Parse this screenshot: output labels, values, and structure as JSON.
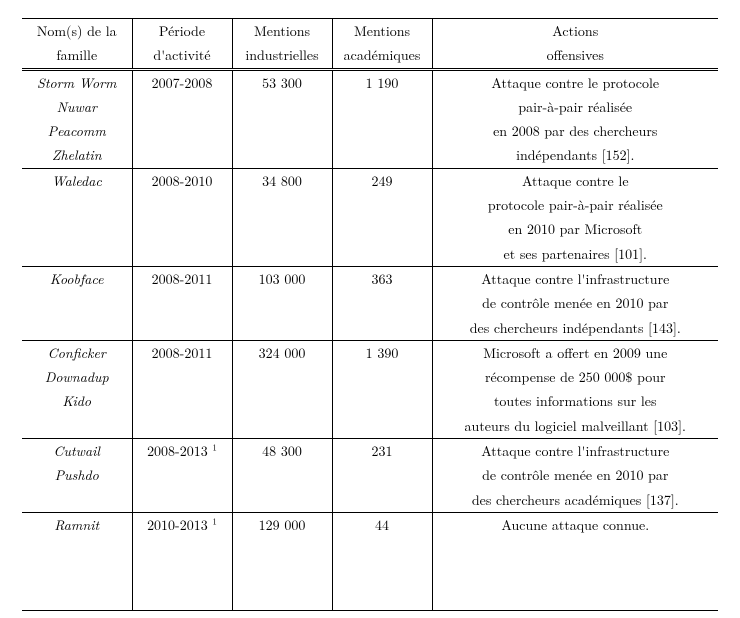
{
  "table": {
    "header": {
      "col1": [
        "Nom(s) de la",
        "famille"
      ],
      "col2": [
        "Période",
        "d'activité"
      ],
      "col3": [
        "Mentions",
        "industrielles"
      ],
      "col4": [
        "Mentions",
        "académiques"
      ],
      "col5": [
        "Actions",
        "offensives"
      ]
    },
    "rows": [
      {
        "family": [
          "Storm Worm",
          "Nuwar",
          "Peacomm",
          "Zhelatin"
        ],
        "period": "2007-2008",
        "industrial": "53 300",
        "academic": "1 190",
        "actions": [
          "Attaque contre le protocole",
          "pair-à-pair réalisée",
          "en 2008 par des chercheurs",
          "indépendants [152]."
        ],
        "period_footnote": ""
      },
      {
        "family": [
          "Waledac"
        ],
        "period": "2008-2010",
        "industrial": "34 800",
        "academic": "249",
        "actions": [
          "Attaque contre le",
          "protocole pair-à-pair réalisée",
          "en 2010 par Microsoft",
          "et ses partenaires [101]."
        ],
        "period_footnote": ""
      },
      {
        "family": [
          "Koobface"
        ],
        "period": "2008-2011",
        "industrial": "103 000",
        "academic": "363",
        "actions": [
          "Attaque contre l'infrastructure",
          "de contrôle menée en 2010 par",
          "des chercheurs indépendants [143]."
        ],
        "period_footnote": ""
      },
      {
        "family": [
          "Conficker",
          "Downadup",
          "Kido"
        ],
        "period": "2008-2011",
        "industrial": "324 000",
        "academic": "1 390",
        "actions": [
          "Microsoft a offert en 2009 une",
          "récompense de 250 000$ pour",
          "toutes informations sur les",
          "auteurs du logiciel malveillant [103]."
        ],
        "period_footnote": ""
      },
      {
        "family": [
          "Cutwail",
          "Pushdo"
        ],
        "period": "2008-2013",
        "industrial": "48 300",
        "academic": "231",
        "actions": [
          "Attaque contre l'infrastructure",
          "de contrôle menée en 2010 par",
          "des chercheurs académiques [137]."
        ],
        "period_footnote": "1"
      },
      {
        "family": [
          "Ramnit"
        ],
        "period": "2010-2013",
        "industrial": "129 000",
        "academic": "44",
        "actions": [
          "Aucune attaque connue.",
          " ",
          " ",
          " "
        ],
        "period_footnote": "1"
      }
    ]
  }
}
